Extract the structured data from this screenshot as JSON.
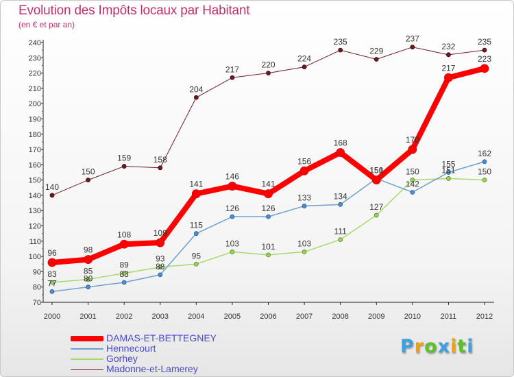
{
  "chart_data": {
    "type": "line",
    "title": "Evolution des Impôts locaux par Habitant",
    "subtitle": "(en € et par an)",
    "x": [
      "2000",
      "2001",
      "2002",
      "2003",
      "2004",
      "2005",
      "2006",
      "2007",
      "2008",
      "2009",
      "2010",
      "2011",
      "2012"
    ],
    "ylim": [
      70,
      240
    ],
    "yticks": [
      70,
      80,
      90,
      100,
      110,
      120,
      130,
      140,
      150,
      160,
      170,
      180,
      190,
      200,
      210,
      220,
      230,
      240
    ],
    "grid": false,
    "legend_position": "bottom-left",
    "series": [
      {
        "name": "Madonne-et-Lamerey",
        "color": "#6e1a22",
        "values": [
          140,
          150,
          159,
          158,
          204,
          217,
          220,
          224,
          235,
          229,
          237,
          232,
          235
        ]
      },
      {
        "name": "Gorhey",
        "color": "#a6d86e",
        "values": [
          83,
          85,
          89,
          93,
          95,
          103,
          101,
          103,
          111,
          127,
          150,
          151,
          150
        ]
      },
      {
        "name": "Hennecourt",
        "color": "#6ea0cc",
        "values": [
          77,
          80,
          83,
          88,
          115,
          126,
          126,
          133,
          134,
          151,
          142,
          155,
          162
        ]
      },
      {
        "name": "DAMAS-ET-BETTEGNEY",
        "color": "#ff0000",
        "values": [
          96,
          98,
          108,
          109,
          141,
          146,
          141,
          156,
          168,
          150,
          170,
          217,
          223
        ]
      }
    ],
    "legend_order": [
      "DAMAS-ET-BETTEGNEY",
      "Hennecourt",
      "Gorhey",
      "Madonne-et-Lamerey"
    ]
  },
  "logo": {
    "letters": [
      "P",
      "r",
      "o",
      "x",
      "i",
      "t",
      "i"
    ],
    "colors": [
      "#3aa0e0",
      "#f5a000",
      "#5cc02a",
      "#3aa0e0",
      "#f5a000",
      "#5cc02a",
      "#3aa0e0"
    ]
  }
}
